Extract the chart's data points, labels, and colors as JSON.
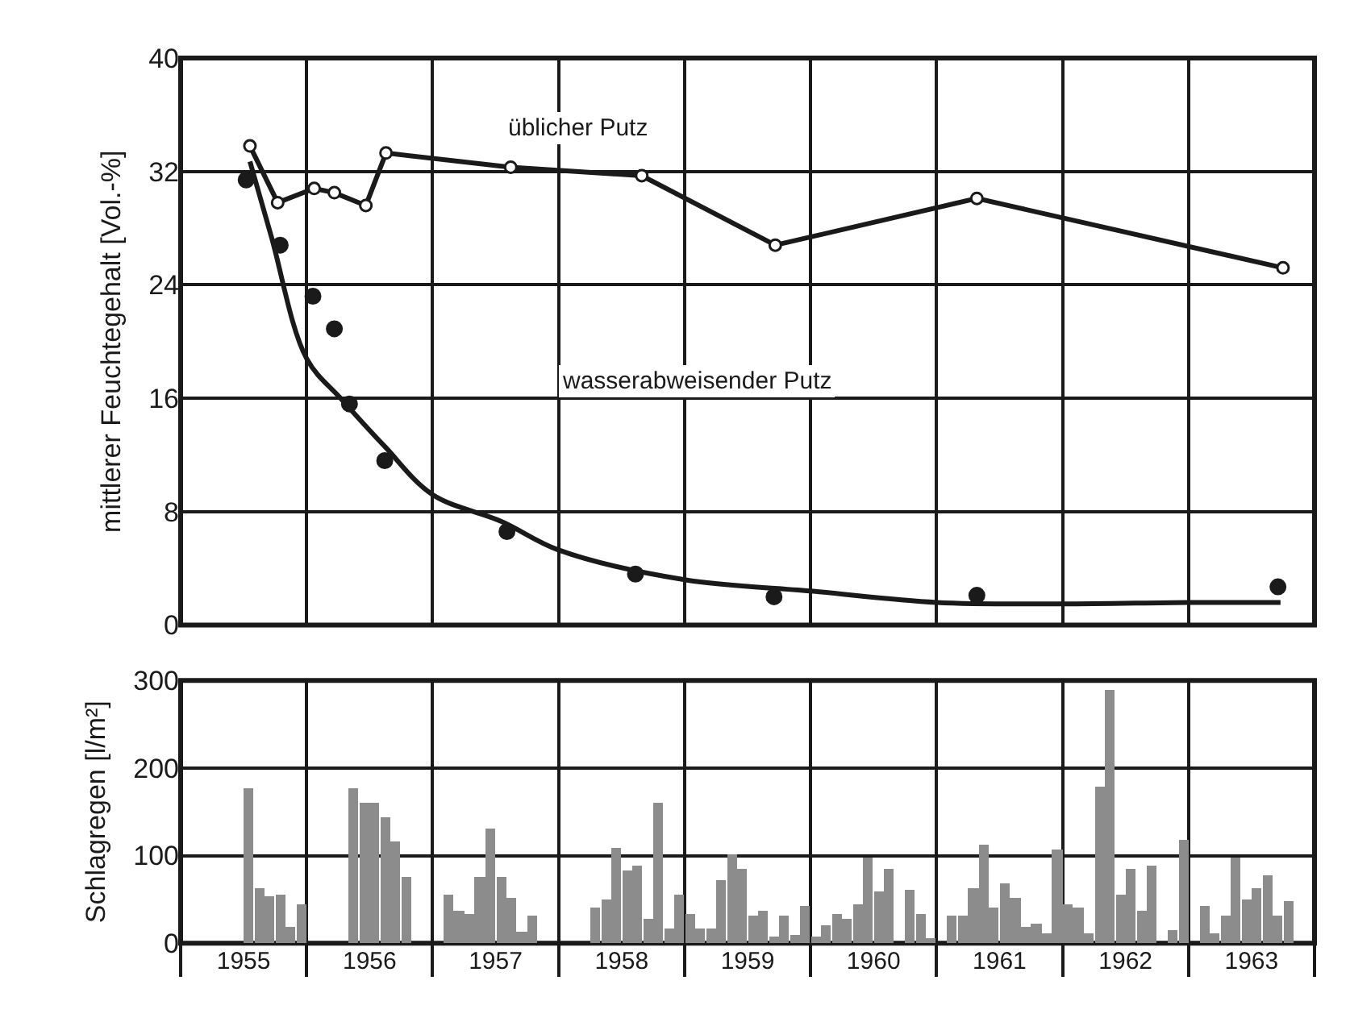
{
  "chart_data": [
    {
      "type": "line",
      "ylabel": "mittlerer Feuchtegehalt [Vol.-%]",
      "xlim": [
        1955,
        1964
      ],
      "ylim": [
        0,
        40
      ],
      "yticks": [
        0,
        8,
        16,
        24,
        32,
        40
      ],
      "xticks": [
        {
          "value": 1955,
          "label": null
        },
        {
          "value": 1956,
          "label": null
        },
        {
          "value": 1957,
          "label": null
        },
        {
          "value": 1958,
          "label": null
        },
        {
          "value": 1959,
          "label": null
        },
        {
          "value": 1960,
          "label": null
        },
        {
          "value": 1961,
          "label": null
        },
        {
          "value": 1962,
          "label": null
        },
        {
          "value": 1963,
          "label": null
        },
        {
          "value": 1964,
          "label": null
        }
      ],
      "tick_labels": "y",
      "grid": true,
      "line_style": "solid",
      "series": [
        {
          "type": "line",
          "marker": "circle",
          "color": "#1a1a1a",
          "x": [
            1955.55,
            1955.77,
            1956.06,
            1956.22,
            1956.47,
            1956.63,
            1957.62,
            1958.66,
            1959.72,
            1961.32,
            1963.75
          ],
          "values": [
            33.8,
            29.8,
            30.8,
            30.5,
            29.6,
            33.3,
            32.3,
            31.7,
            26.8,
            30.1,
            25.2
          ]
        },
        {
          "type": "scatter",
          "marker": "circle",
          "color": "#1a1a1a",
          "x": [
            1955.52,
            1955.79,
            1956.05,
            1956.22,
            1956.34,
            1956.62,
            1957.59,
            1958.61,
            1959.71,
            1961.32,
            1963.71
          ],
          "values": [
            31.4,
            26.8,
            23.2,
            20.9,
            15.6,
            11.6,
            6.6,
            3.6,
            2.0,
            2.1,
            2.7
          ]
        },
        {
          "type": "line",
          "marker": "none",
          "color": "#1a1a1a",
          "x": [
            1955.55,
            1955.72,
            1956.0,
            1956.28,
            1956.62,
            1957.0,
            1957.55,
            1958.0,
            1959.0,
            1960.0,
            1961.0,
            1962.0,
            1963.0,
            1963.73
          ],
          "values": [
            32.7,
            27.4,
            18.8,
            15.9,
            12.6,
            9.2,
            7.3,
            5.3,
            3.2,
            2.4,
            1.6,
            1.5,
            1.6,
            1.6
          ]
        }
      ],
      "annotations": [
        "üblicher Putz",
        "wasserabweisender Putz"
      ]
    },
    {
      "type": "bar",
      "ylabel": "Schlagregen [l/m²]",
      "xlim": [
        1955,
        1964
      ],
      "ylim": [
        0,
        300
      ],
      "yticks": [
        0,
        100,
        200,
        300
      ],
      "grid": true,
      "color": "#8c8c8c",
      "xticks": [
        {
          "value": 1955,
          "label": null
        },
        {
          "value": 1956,
          "label": null
        },
        {
          "value": 1957,
          "label": null
        },
        {
          "value": 1958,
          "label": null
        },
        {
          "value": 1959,
          "label": null
        },
        {
          "value": 1960,
          "label": null
        },
        {
          "value": 1961,
          "label": null
        },
        {
          "value": 1962,
          "label": null
        },
        {
          "value": 1963,
          "label": null
        },
        {
          "value": 1964,
          "label": null
        },
        {
          "value": 1955.5,
          "label": "1955"
        },
        {
          "value": 1956.5,
          "label": "1956"
        },
        {
          "value": 1957.5,
          "label": "1957"
        },
        {
          "value": 1958.5,
          "label": "1958"
        },
        {
          "value": 1959.5,
          "label": "1959"
        },
        {
          "value": 1960.5,
          "label": "1960"
        },
        {
          "value": 1961.5,
          "label": "1961"
        },
        {
          "value": 1962.5,
          "label": "1962"
        },
        {
          "value": 1963.5,
          "label": "1963"
        }
      ],
      "x": [
        1955.542,
        1955.625,
        1955.708,
        1955.792,
        1955.875,
        1955.958,
        1956.375,
        1956.458,
        1956.542,
        1956.625,
        1956.708,
        1956.792,
        1957.125,
        1957.208,
        1957.292,
        1957.375,
        1957.458,
        1957.542,
        1957.625,
        1957.708,
        1957.792,
        1958.292,
        1958.375,
        1958.458,
        1958.542,
        1958.625,
        1958.708,
        1958.792,
        1958.875,
        1958.958,
        1959.042,
        1959.125,
        1959.208,
        1959.292,
        1959.375,
        1959.458,
        1959.542,
        1959.625,
        1959.708,
        1959.792,
        1959.875,
        1959.958,
        1960.042,
        1960.125,
        1960.208,
        1960.292,
        1960.375,
        1960.458,
        1960.542,
        1960.625,
        1960.792,
        1960.875,
        1960.958,
        1961.125,
        1961.208,
        1961.292,
        1961.375,
        1961.458,
        1961.542,
        1961.625,
        1961.708,
        1961.792,
        1961.875,
        1961.958,
        1962.042,
        1962.125,
        1962.208,
        1962.292,
        1962.375,
        1962.458,
        1962.542,
        1962.625,
        1962.708,
        1962.875,
        1962.958,
        1963.125,
        1963.208,
        1963.292,
        1963.375,
        1963.458,
        1963.542,
        1963.625,
        1963.708,
        1963.792
      ],
      "values": [
        177,
        62,
        53,
        56,
        18,
        44,
        177,
        161,
        160,
        143,
        116,
        76,
        56,
        36,
        33,
        76,
        131,
        76,
        52,
        13,
        31,
        40,
        50,
        108,
        83,
        88,
        28,
        160,
        16,
        56,
        34,
        16,
        17,
        72,
        102,
        85,
        32,
        37,
        7,
        32,
        10,
        43,
        7,
        20,
        33,
        28,
        44,
        98,
        59,
        84,
        61,
        33,
        6,
        31,
        32,
        62,
        112,
        41,
        68,
        51,
        19,
        22,
        12,
        107,
        45,
        40,
        12,
        178,
        289,
        55,
        84,
        37,
        88,
        15,
        117,
        42,
        12,
        31,
        98,
        50,
        62,
        78,
        31,
        47
      ]
    }
  ]
}
